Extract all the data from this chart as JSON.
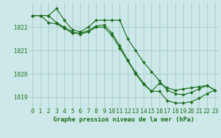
{
  "line1": {
    "x": [
      0,
      1,
      2,
      3,
      4,
      5,
      6,
      7,
      8,
      9,
      10,
      11,
      12,
      13,
      14,
      15,
      16,
      17,
      18,
      19,
      20,
      21,
      22,
      23
    ],
    "y": [
      1022.5,
      1022.5,
      1022.5,
      1022.8,
      1022.3,
      1021.9,
      1021.8,
      1022.0,
      1022.3,
      1022.3,
      1022.3,
      1022.3,
      1021.5,
      1021.0,
      1020.5,
      1020.1,
      1019.7,
      1019.3,
      1019.15,
      1019.1,
      1019.2,
      1019.35,
      1019.5,
      1019.3
    ]
  },
  "line2": {
    "x": [
      0,
      1,
      2,
      3,
      4,
      5,
      6,
      7,
      8,
      9,
      10,
      11,
      12,
      13,
      14,
      15,
      16,
      17,
      18,
      19,
      20,
      21,
      22,
      23
    ],
    "y": [
      1022.5,
      1022.5,
      1022.2,
      1022.15,
      1021.95,
      1021.75,
      1021.75,
      1021.85,
      1022.05,
      1022.1,
      1021.75,
      1021.2,
      1020.6,
      1020.05,
      1019.6,
      1019.25,
      1019.6,
      1019.4,
      1019.3,
      1019.35,
      1019.4,
      1019.45,
      1019.5,
      1019.3
    ]
  },
  "line3": {
    "x": [
      0,
      1,
      2,
      3,
      4,
      5,
      6,
      7,
      8,
      9,
      10,
      11,
      12,
      13,
      14,
      15,
      16,
      17,
      18,
      19,
      20,
      21,
      22,
      23
    ],
    "y": [
      1022.5,
      1022.5,
      1022.5,
      1022.2,
      1022.0,
      1021.8,
      1021.7,
      1021.8,
      1022.0,
      1022.0,
      1021.65,
      1021.1,
      1020.55,
      1020.0,
      1019.55,
      1019.25,
      1019.25,
      1018.85,
      1018.75,
      1018.75,
      1018.8,
      1018.95,
      1019.15,
      1019.3
    ]
  },
  "bg_color": "#cce8e8",
  "grid_color": "#aacccc",
  "line_color": "#1a6b1a",
  "marker": "D",
  "marker_size": 2.2,
  "xlabel": "Graphe pression niveau de la mer (hPa)",
  "ylim": [
    1018.55,
    1023.05
  ],
  "xlim": [
    -0.5,
    23.5
  ],
  "yticks": [
    1019,
    1020,
    1021,
    1022
  ],
  "xtick_labels": [
    "0",
    "1",
    "2",
    "3",
    "4",
    "5",
    "6",
    "7",
    "8",
    "9",
    "10",
    "11",
    "12",
    "13",
    "14",
    "15",
    "16",
    "17",
    "18",
    "19",
    "20",
    "21",
    "22",
    "23"
  ],
  "xlabel_fontsize": 6.5,
  "tick_fontsize": 6.0,
  "xlabel_color": "#1a6b1a",
  "tick_color": "#1a6b1a",
  "linewidth": 0.85
}
